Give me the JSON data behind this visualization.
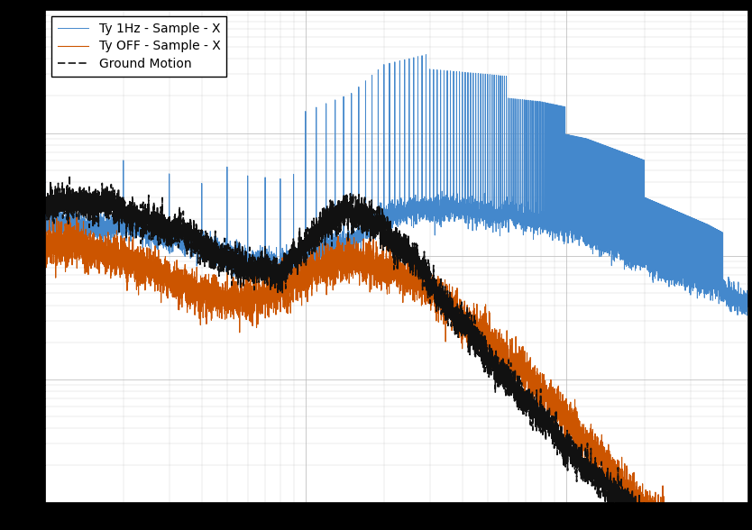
{
  "title": "",
  "line1_label": "Ty 1Hz - Sample - X",
  "line2_label": "Ty OFF - Sample - X",
  "line3_label": "Ground Motion",
  "line1_color": "#4488cc",
  "line2_color": "#cc5500",
  "line3_color": "#111111",
  "background_color": "#ffffff",
  "grid_color": "#bbbbbb",
  "xmin": 1,
  "xmax": 500,
  "ymin": 1e-10,
  "ymax": 1e-06,
  "figwidth": 8.34,
  "figheight": 5.88,
  "dpi": 100
}
